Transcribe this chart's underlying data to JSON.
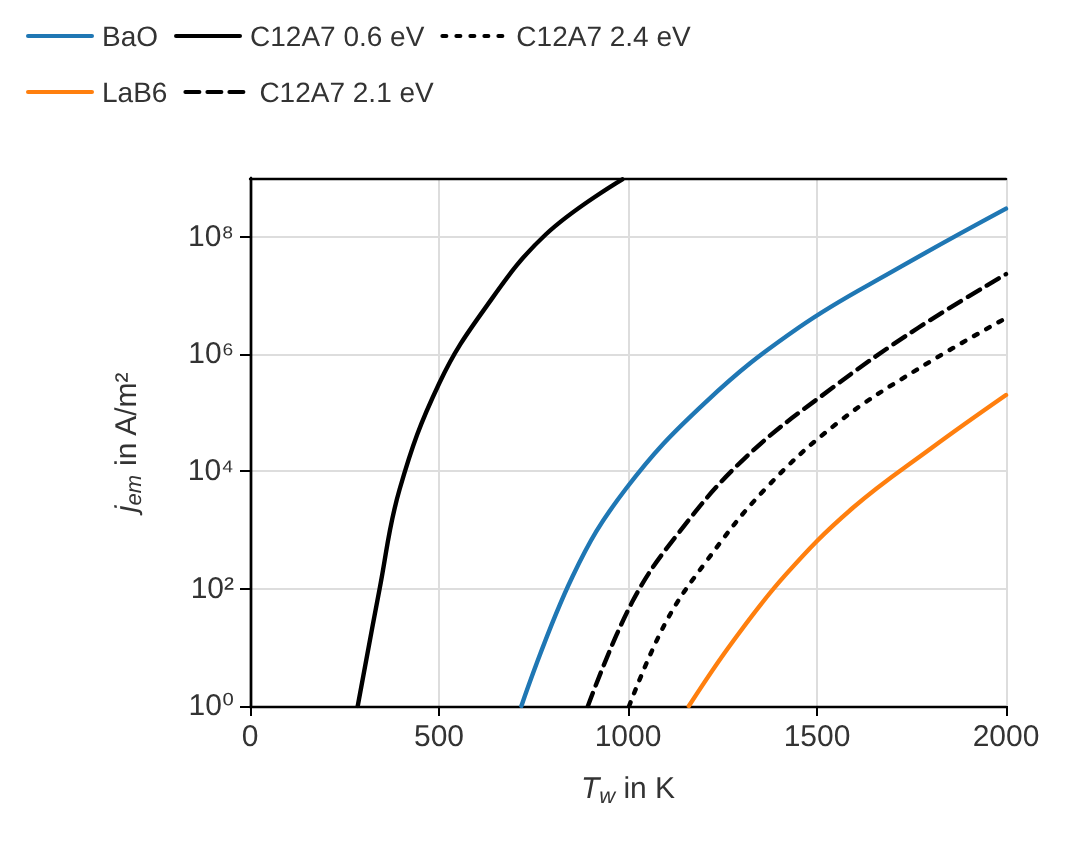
{
  "chart_data": {
    "type": "line",
    "xlabel": "T$_{w}$ in K",
    "ylabel": "j$_{em}$ in A/m²",
    "log": "y",
    "grid": true,
    "legend": "top",
    "marker": "none",
    "xlim": [
      0,
      2000
    ],
    "xticks": [
      0,
      500,
      1000,
      1500,
      2000
    ],
    "ylim": [
      1,
      1000000000
    ],
    "yticks": [
      {
        "value": 1,
        "label": "10⁰"
      },
      {
        "value": 100,
        "label": "10²"
      },
      {
        "value": 10000,
        "label": "10⁴"
      },
      {
        "value": 1000000,
        "label": "10⁶"
      },
      {
        "value": 100000000,
        "label": "10⁸"
      }
    ],
    "series": [
      {
        "name": "BaO",
        "color": "#1f77b4",
        "line_style": "solid",
        "x": [
          718,
          853,
          994,
          1205,
          1451,
          1715,
          2000
        ],
        "values": [
          1,
          160,
          5000,
          150000,
          2800000,
          29000000,
          300000000
        ]
      },
      {
        "name": "LaB6",
        "color": "#ff7f0e",
        "line_style": "solid",
        "x": [
          1161,
          1275,
          1416,
          1592,
          1803,
          2000
        ],
        "values": [
          1,
          12,
          170,
          2300,
          25000,
          200000
        ]
      },
      {
        "name": "C12A7 0.6 eV",
        "color": "#000000",
        "line_style": "solid",
        "x": [
          285,
          343,
          396,
          501,
          624,
          783,
          985
        ],
        "values": [
          1,
          100,
          5000,
          320000,
          6300000,
          110000000,
          950000000
        ]
      },
      {
        "name": "C12A7 2.1 eV",
        "color": "#000000",
        "line_style": "dashed",
        "x": [
          894,
          1011,
          1135,
          1310,
          1539,
          1768,
          2000
        ],
        "values": [
          1,
          59,
          910,
          17000,
          260000,
          2800000,
          23000000
        ]
      },
      {
        "name": "C12A7 2.4 eV",
        "color": "#000000",
        "line_style": "dotted",
        "x": [
          1003,
          1099,
          1205,
          1363,
          1557,
          1768,
          2000
        ],
        "values": [
          1,
          26,
          280,
          5000,
          69000,
          560000,
          4100000
        ]
      }
    ]
  }
}
